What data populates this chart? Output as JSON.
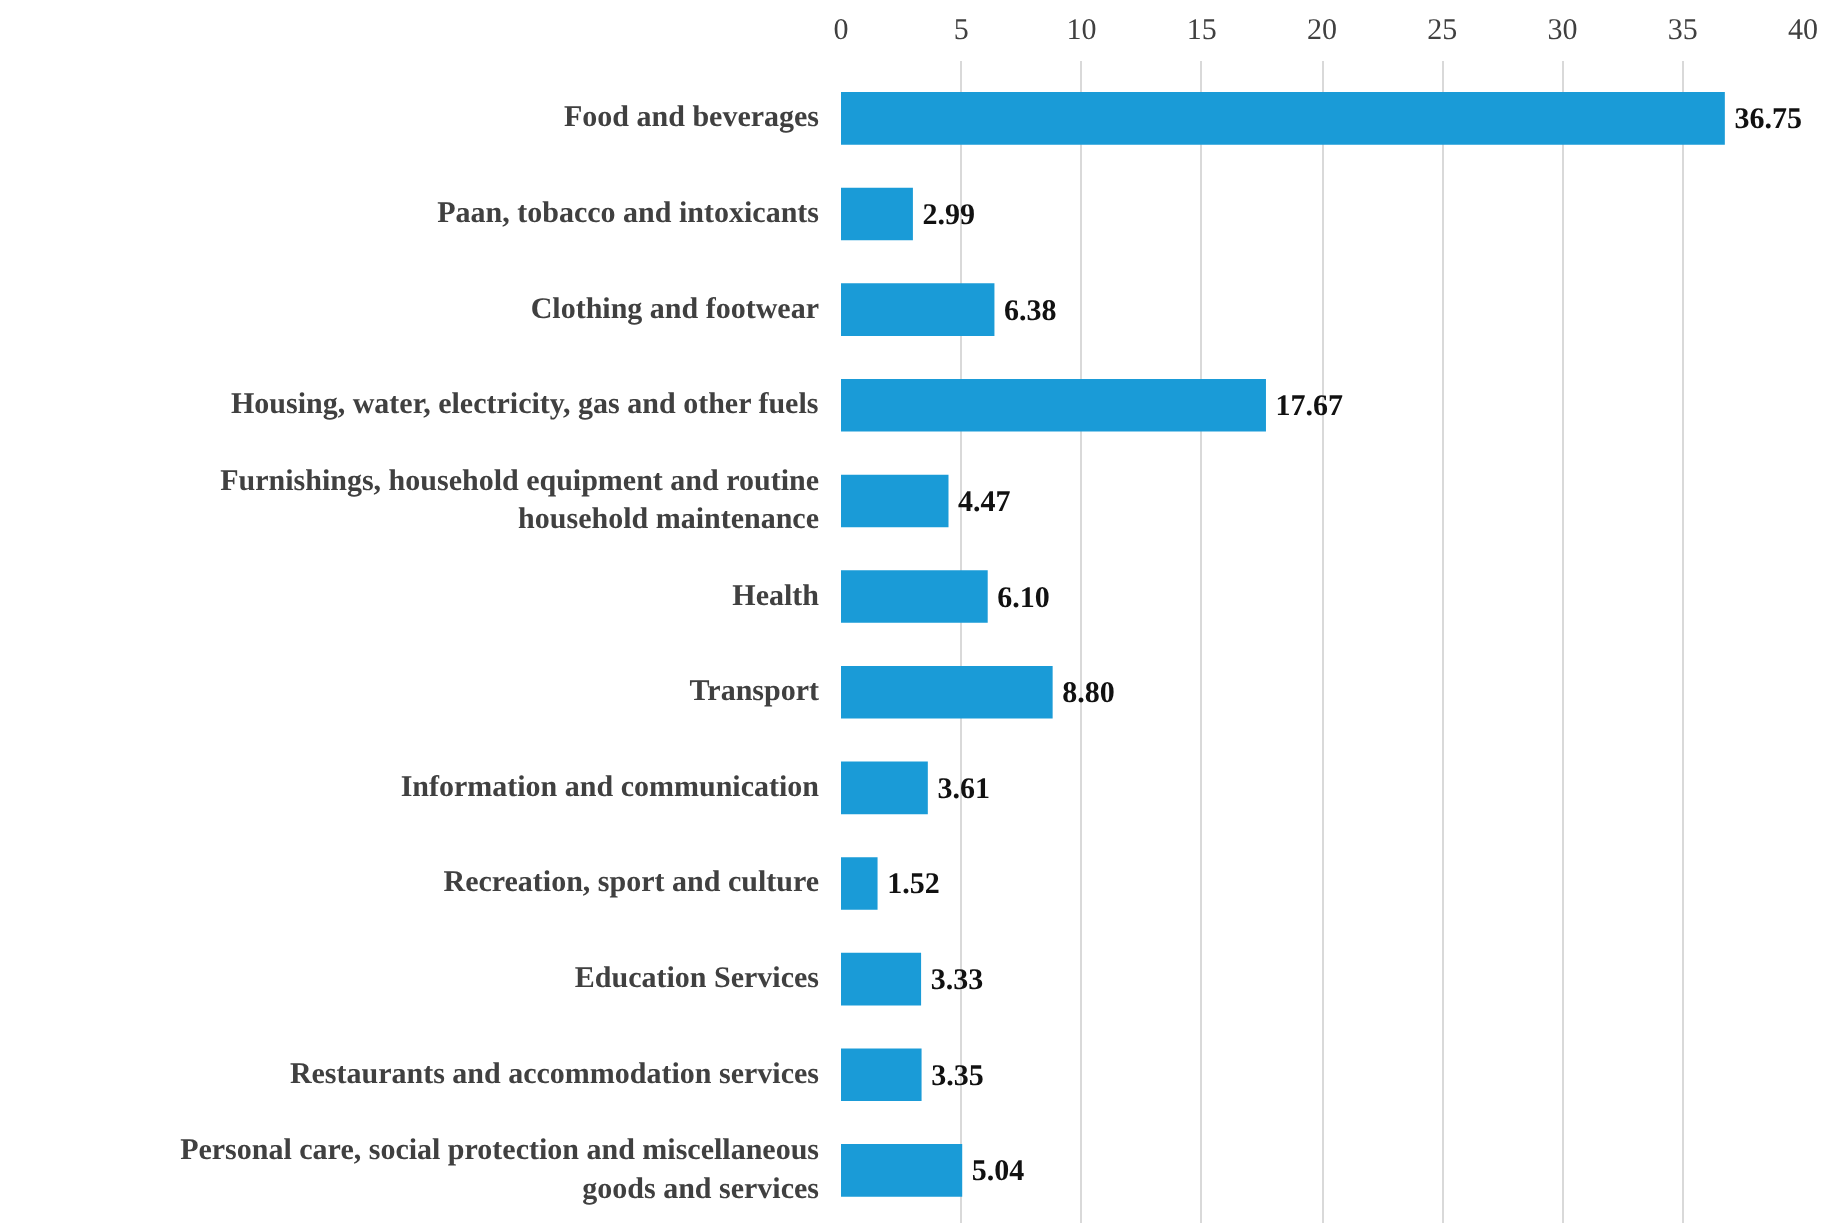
{
  "chart_data": {
    "type": "bar",
    "orientation": "horizontal",
    "categories": [
      "Food and beverages",
      "Paan, tobacco and intoxicants",
      "Clothing and footwear",
      "Housing, water, electricity, gas and other fuels",
      "Furnishings, household equipment and routine household maintenance",
      "Health",
      "Transport",
      "Information and communication",
      "Recreation, sport and culture",
      "Education Services",
      "Restaurants and accommodation services",
      "Personal care, social protection and miscellaneous goods and services"
    ],
    "values": [
      36.75,
      2.99,
      6.38,
      17.67,
      4.47,
      6.1,
      8.8,
      3.61,
      1.52,
      3.33,
      3.35,
      5.04
    ],
    "value_labels": [
      "36.75",
      "2.99",
      "6.38",
      "17.67",
      "4.47",
      "6.10",
      "8.80",
      "3.61",
      "1.52",
      "3.33",
      "3.35",
      "5.04"
    ],
    "color": "#1a9bd7",
    "xlim": [
      0,
      40
    ],
    "xticks": [
      0,
      5,
      10,
      15,
      20,
      25,
      30,
      35,
      40
    ],
    "grid": "x"
  }
}
